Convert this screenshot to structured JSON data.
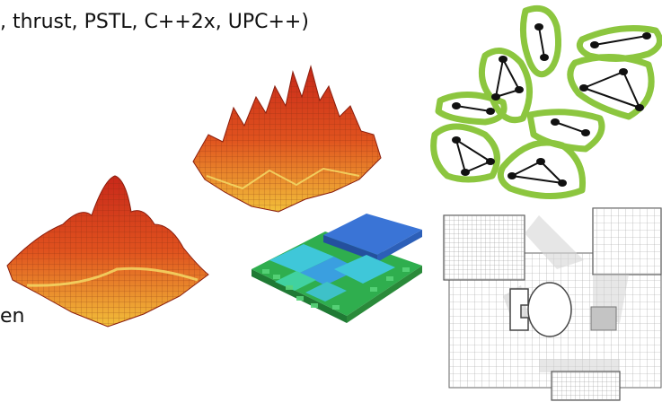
{
  "slide": {
    "top_text": ", thrust, PSTL,  C++2x, UPC++)",
    "bottom_fragment": "en"
  },
  "colors": {
    "text": "#111111",
    "graph_outline": "#8cc63f",
    "surface_red": "#d73a1c",
    "surface_yellow": "#f2d53c",
    "quadtree_blue": "#3a74d6",
    "quadtree_cyan": "#3fc7d9",
    "quadtree_green": "#3bbf6b",
    "mesh_gray": "#c9c9c9"
  },
  "figures": [
    {
      "name": "graph-partition-figure",
      "icon": "graph-clusters"
    },
    {
      "name": "surface-plot-spiky",
      "icon": "3d-surface"
    },
    {
      "name": "surface-plot-smooth",
      "icon": "3d-surface"
    },
    {
      "name": "adaptive-quadtree-figure",
      "icon": "stacked-blocks"
    },
    {
      "name": "finite-element-mesh-figure",
      "icon": "mesh-grid"
    }
  ]
}
